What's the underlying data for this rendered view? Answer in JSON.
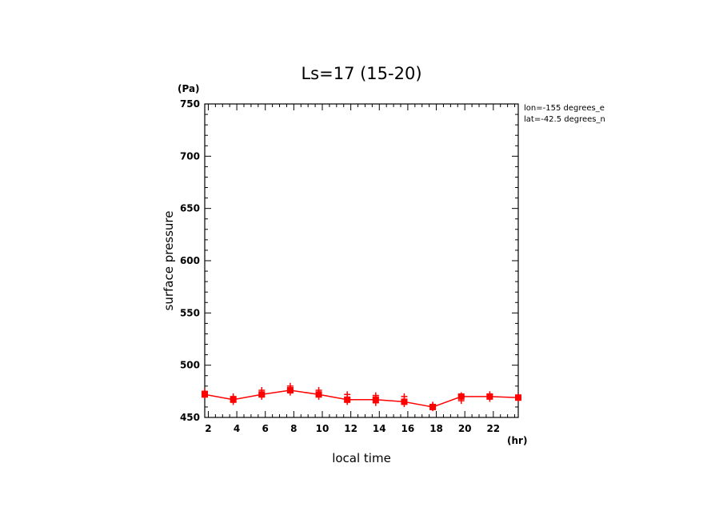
{
  "chart_data": {
    "type": "line",
    "title": "Ls=17 (15-20)",
    "xlabel": "local time",
    "ylabel": "surface pressure",
    "x_unit": "(hr)",
    "y_unit": "(Pa)",
    "annotations": [
      "lon=-155 degrees_e",
      "lat=-42.5 degrees_n"
    ],
    "xlim": [
      1.75,
      23.75
    ],
    "ylim": [
      450,
      750
    ],
    "x_ticks": [
      2,
      4,
      6,
      8,
      10,
      12,
      14,
      16,
      18,
      20,
      22
    ],
    "y_ticks": [
      450,
      500,
      550,
      600,
      650,
      700,
      750
    ],
    "color": "#ff0000",
    "series": [
      {
        "x": [
          1.75,
          3.75,
          5.75,
          7.75,
          9.75,
          11.75,
          13.75,
          15.75,
          17.75,
          19.75,
          21.75,
          23.75
        ],
        "values": [
          472,
          467,
          472,
          476,
          472,
          467,
          467,
          465,
          460,
          470,
          470,
          469
        ]
      }
    ],
    "samples": [
      {
        "x": 1.75,
        "y": [
          475,
          471,
          473
        ]
      },
      {
        "x": 3.75,
        "y": [
          470,
          465,
          468
        ]
      },
      {
        "x": 5.75,
        "y": [
          476,
          470,
          473
        ]
      },
      {
        "x": 7.75,
        "y": [
          480,
          474,
          477
        ]
      },
      {
        "x": 9.75,
        "y": [
          476,
          470,
          473
        ]
      },
      {
        "x": 11.75,
        "y": [
          472,
          465,
          468
        ]
      },
      {
        "x": 13.75,
        "y": [
          471,
          464,
          468
        ]
      },
      {
        "x": 15.75,
        "y": [
          470,
          463,
          466
        ]
      },
      {
        "x": 17.75,
        "y": [
          462,
          459,
          461
        ]
      },
      {
        "x": 19.75,
        "y": [
          471,
          466,
          469
        ]
      },
      {
        "x": 21.75,
        "y": [
          472,
          468,
          470
        ]
      },
      {
        "x": 23.75,
        "y": [
          470,
          468,
          469
        ]
      }
    ]
  }
}
